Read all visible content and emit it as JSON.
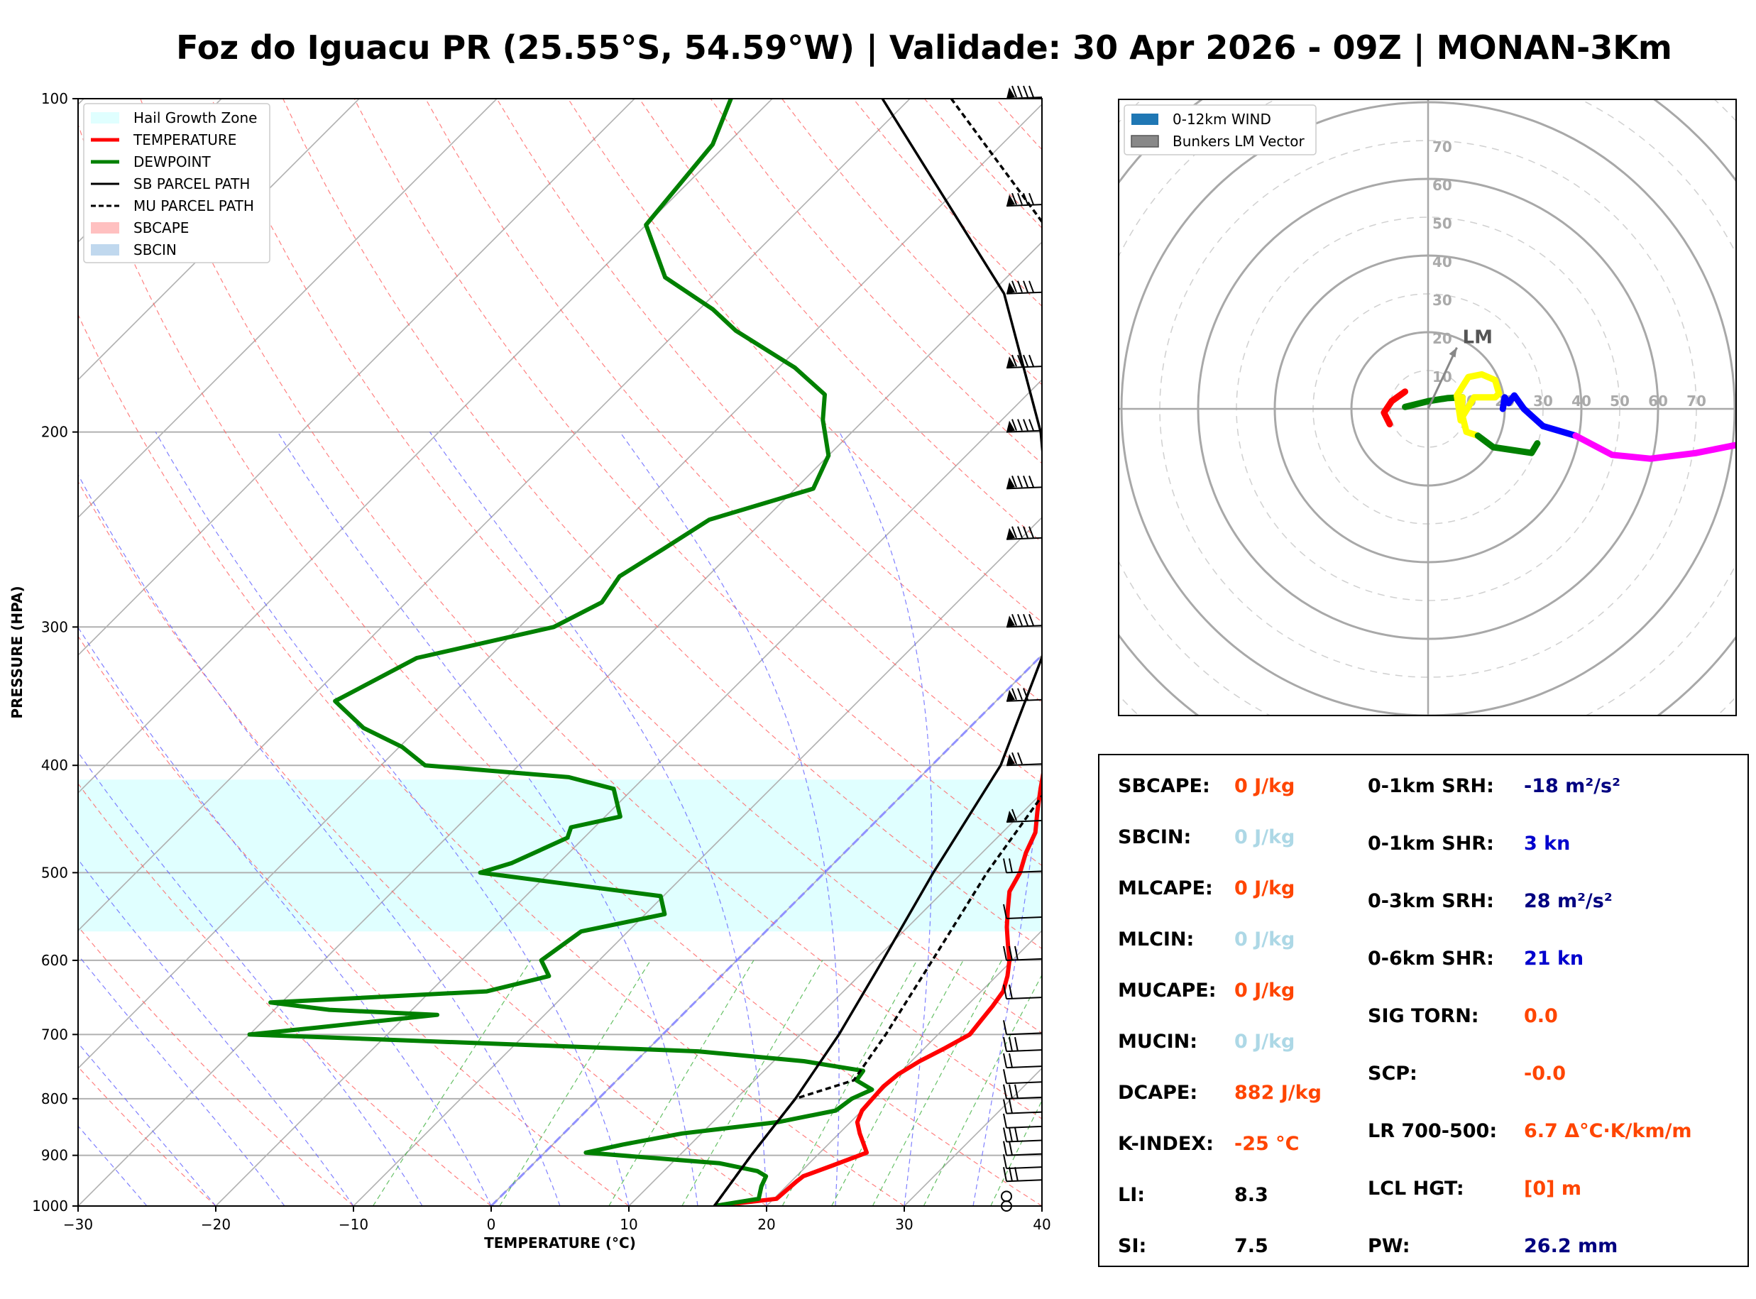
{
  "title": "Foz do Iguacu PR (25.55°S, 54.59°W) | Validade: 30 Apr 2026 - 09Z | MONAN-3Km",
  "chart_data": [
    {
      "type": "line",
      "subtype": "skew-t",
      "xlabel": "TEMPERATURE (°C)",
      "ylabel": "PRESSURE (HPA)",
      "xlim": [
        -30,
        40
      ],
      "ylim": [
        1000,
        100
      ],
      "y_scale": "log",
      "x_ticks": [
        "−30",
        "−20",
        "−10",
        "0",
        "10",
        "20",
        "30",
        "40"
      ],
      "y_ticks": [
        "100",
        "200",
        "300",
        "400",
        "500",
        "600",
        "700",
        "800",
        "900",
        "1000"
      ],
      "grid": true,
      "legend": {
        "placement": "top-left",
        "entries": [
          {
            "label": "Hail Growth Zone",
            "color": "#e0ffff"
          },
          {
            "label": "TEMPERATURE",
            "color": "#ff0000"
          },
          {
            "label": "DEWPOINT",
            "color": "#008000"
          },
          {
            "label": "SB PARCEL PATH",
            "color": "#000000"
          },
          {
            "label": "MU PARCEL PATH",
            "color": "#000000"
          },
          {
            "label": "SBCAPE",
            "color": "#ffc0c0"
          },
          {
            "label": "SBCIN",
            "color": "#c0d8ee"
          }
        ]
      },
      "hail_growth_zone": {
        "p_bottom": 565,
        "p_top": 412
      },
      "series": [
        {
          "name": "TEMPERATURE",
          "color": "#ff0000",
          "p": [
            1000,
            985,
            950,
            940,
            920,
            895,
            880,
            860,
            840,
            820,
            800,
            780,
            760,
            740,
            720,
            700,
            680,
            660,
            640,
            620,
            600,
            580,
            560,
            540,
            520,
            500,
            480,
            460,
            440,
            420,
            400,
            385,
            370,
            355,
            340,
            320,
            300,
            280,
            260,
            240,
            220,
            200,
            185,
            170,
            155,
            140,
            125,
            112,
            100
          ],
          "t": [
            16.2,
            20.2,
            20.4,
            20.5,
            21.8,
            23.4,
            22.6,
            21.5,
            20.5,
            20,
            19.9,
            19.8,
            20,
            20.6,
            21.5,
            22.3,
            22.1,
            21.9,
            21.6,
            20.8,
            19.8,
            18.5,
            17.2,
            16,
            14.8,
            14.2,
            13.2,
            12.4,
            11,
            9.6,
            8.2,
            7.1,
            6.2,
            5.2,
            4.6,
            3.4,
            2.2,
            1.3,
            0.2,
            -0.8,
            -2.4,
            -4.1,
            -3.6,
            -2.6,
            0.4,
            2.3,
            4.2,
            6.6,
            10.5
          ]
        },
        {
          "name": "DEWPOINT",
          "color": "#008000",
          "p": [
            1000,
            985,
            960,
            940,
            930,
            915,
            895,
            880,
            860,
            840,
            820,
            800,
            785,
            770,
            755,
            740,
            725,
            700,
            690,
            672,
            665,
            655,
            640,
            620,
            600,
            565,
            545,
            525,
            500,
            490,
            465,
            455,
            445,
            420,
            410,
            400,
            385,
            370,
            350,
            320,
            300,
            285,
            270,
            255,
            240,
            225,
            210,
            195,
            185,
            175,
            162,
            155,
            145,
            130,
            110,
            100
          ],
          "t": [
            16.2,
            18.9,
            18.2,
            17.8,
            16.8,
            13.5,
            3,
            5.1,
            8.6,
            14.7,
            18.1,
            18.4,
            19.2,
            17.4,
            17.2,
            12.2,
            3.8,
            -30,
            -25.6,
            -17.8,
            -26,
            -30.8,
            -15.9,
            -12.5,
            -14.2,
            -13.4,
            -8.6,
            -10.2,
            -25,
            -23.4,
            -21.2,
            -21.7,
            -18.9,
            -21.4,
            -25.5,
            -36.8,
            -39.8,
            -44,
            -48,
            -45.2,
            -37.5,
            -35.8,
            -36.4,
            -35.2,
            -34,
            -28.7,
            -30,
            -33,
            -34.7,
            -38.8,
            -45.8,
            -49,
            -54.8,
            -60,
            -61,
            -63
          ]
        },
        {
          "name": "SB PARCEL PATH",
          "color": "#000000",
          "p": [
            1000,
            900,
            800,
            700,
            600,
            500,
            400,
            300,
            250,
            200,
            150,
            100
          ],
          "t": [
            16.2,
            15.2,
            14.3,
            12.8,
            10.6,
            7.9,
            5.0,
            -1.2,
            -7.8,
            -16.3,
            -29.0,
            -52.0
          ]
        },
        {
          "name": "MU PARCEL PATH",
          "color": "#000000",
          "p": [
            1000,
            900,
            800,
            770,
            700,
            600,
            500,
            400,
            300,
            250,
            200,
            150,
            100
          ],
          "t": [
            16.2,
            15.2,
            14.3,
            17.2,
            16.2,
            14.2,
            11.8,
            9.6,
            4.2,
            -1.8,
            -10.1,
            -22.4,
            -47.0
          ]
        }
      ],
      "wind_barbs_p": [
        1000,
        980,
        950,
        925,
        900,
        875,
        850,
        825,
        800,
        775,
        750,
        725,
        700,
        650,
        600,
        550,
        500,
        450,
        400,
        350,
        300,
        250,
        225,
        200,
        175,
        150,
        125,
        100
      ]
    },
    {
      "type": "line",
      "subtype": "hodograph",
      "rings": [
        "10",
        "20",
        "30",
        "40",
        "50",
        "60",
        "70"
      ],
      "legend": {
        "placement": "top-left",
        "entries": [
          {
            "label": "0-12km WIND",
            "color": "#1f77b4"
          },
          {
            "label": "Bunkers LM Vector",
            "color": "#888888"
          }
        ]
      },
      "lm_label": "LM",
      "lm_vector": {
        "u": 7.5,
        "v": 16
      },
      "segments": [
        {
          "color": "#ff0000",
          "u": [
            -10,
            -11.5,
            -9.5,
            -6
          ],
          "v": [
            -4,
            -1,
            2,
            4.5
          ]
        },
        {
          "color": "#008000",
          "u": [
            -6,
            0,
            5,
            9
          ],
          "v": [
            0.5,
            2,
            2.8,
            3
          ]
        },
        {
          "color": "#ffff00",
          "u": [
            9,
            8.5,
            7.5,
            10.5,
            14,
            17.5,
            18.5,
            17.5,
            12,
            9,
            10,
            13
          ],
          "v": [
            3,
            -3,
            3.5,
            8.3,
            9,
            7.5,
            4,
            3,
            3,
            -2,
            -6,
            -7
          ]
        },
        {
          "color": "#008000",
          "u": [
            13,
            17,
            27,
            28.5
          ],
          "v": [
            -7,
            -10,
            -11.5,
            -9
          ]
        },
        {
          "color": "#0000ff",
          "u": [
            19.5,
            20,
            21,
            22.5,
            25,
            30
          ],
          "v": [
            0,
            3,
            1.5,
            3.5,
            0,
            -4.5
          ]
        },
        {
          "color": "#0000ff",
          "u": [
            30,
            38.5
          ],
          "v": [
            -4.5,
            -7
          ]
        },
        {
          "color": "#ff00ff",
          "u": [
            38.5,
            48,
            58,
            70,
            80
          ],
          "v": [
            -7,
            -12,
            -13,
            -11.5,
            -9.5
          ]
        }
      ]
    }
  ],
  "stats_left": [
    {
      "label": "SBCAPE:",
      "value": "0 J/kg",
      "color": "#ff4500"
    },
    {
      "label": "SBCIN:",
      "value": "0 J/kg",
      "color": "#add8e6"
    },
    {
      "label": "MLCAPE:",
      "value": "0 J/kg",
      "color": "#ff4500"
    },
    {
      "label": "MLCIN:",
      "value": "0 J/kg",
      "color": "#add8e6"
    },
    {
      "label": "MUCAPE:",
      "value": "0 J/kg",
      "color": "#ff4500"
    },
    {
      "label": "MUCIN:",
      "value": "0 J/kg",
      "color": "#add8e6"
    },
    {
      "label": "DCAPE:",
      "value": "882 J/kg",
      "color": "#ff4500"
    },
    {
      "label": "K-INDEX:",
      "value": "-25 °C",
      "color": "#ff4500"
    },
    {
      "label": "LI:",
      "value": "8.3",
      "color": "#000000"
    },
    {
      "label": "SI:",
      "value": "7.5",
      "color": "#000000"
    }
  ],
  "stats_right": [
    {
      "label": "0-1km SRH:",
      "value": "-18 m²/s²",
      "color": "#000080"
    },
    {
      "label": "0-1km SHR:",
      "value": "3 kn",
      "color": "#0000cd"
    },
    {
      "label": "0-3km SRH:",
      "value": "28 m²/s²",
      "color": "#000080"
    },
    {
      "label": "0-6km SHR:",
      "value": "21 kn",
      "color": "#0000cd"
    },
    {
      "label": "SIG TORN:",
      "value": "0.0",
      "color": "#ff4500"
    },
    {
      "label": "SCP:",
      "value": "-0.0",
      "color": "#ff4500"
    },
    {
      "label": "LR 700-500:",
      "value": "6.7 Δ°C·K/km/m",
      "color": "#ff4500"
    },
    {
      "label": "LCL HGT:",
      "value": "[0] m",
      "color": "#ff4500"
    },
    {
      "label": "PW:",
      "value": "26.2 mm",
      "color": "#000080"
    }
  ]
}
